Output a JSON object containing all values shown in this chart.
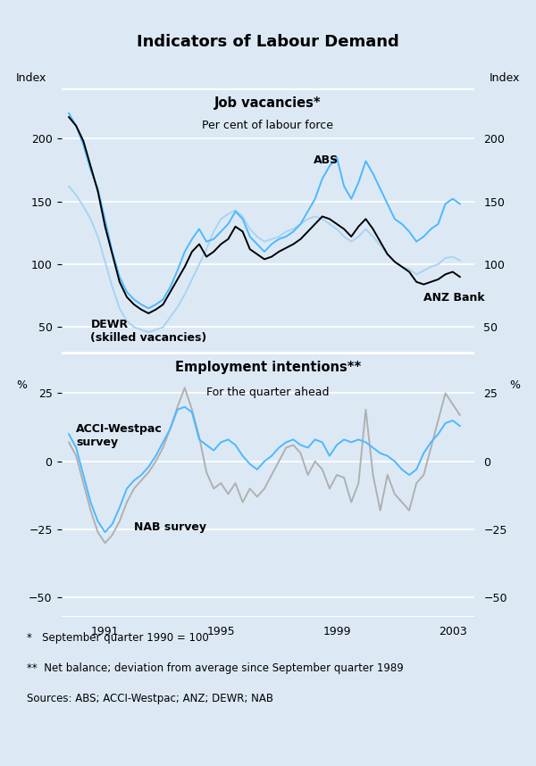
{
  "title": "Indicators of Labour Demand",
  "bg_color": "#dce9f5",
  "panel1_title": "Job vacancies*",
  "panel1_subtitle": "Per cent of labour force",
  "panel2_title": "Employment intentions**",
  "panel2_subtitle": "For the quarter ahead",
  "footnote1": "*   September quarter 1990 = 100",
  "footnote2": "**  Net balance; deviation from average since September quarter 1989",
  "footnote3": "Sources: ABS; ACCI-Westpac; ANZ; DEWR; NAB",
  "panel1_ylabel_left": "Index",
  "panel1_ylabel_right": "Index",
  "panel2_ylabel_left": "%",
  "panel2_ylabel_right": "%",
  "panel1_ylim": [
    30,
    240
  ],
  "panel1_yticks": [
    50,
    100,
    150,
    200
  ],
  "panel2_ylim": [
    -57,
    40
  ],
  "panel2_yticks": [
    -50,
    -25,
    0,
    25
  ],
  "xmin": 1989.5,
  "xmax": 2003.75,
  "xticks": [
    1991,
    1995,
    1999,
    2003
  ],
  "color_abs": "#4db8ff",
  "color_anz": "#000000",
  "color_dewr": "#a8d4f0",
  "color_acci": "#4db8ff",
  "color_nab": "#b0b0b0",
  "label_abs": "ABS",
  "label_anz": "ANZ Bank",
  "label_dewr": "DEWR\n(skilled vacancies)",
  "label_acci": "ACCI-Westpac\nsurvey",
  "label_nab": "NAB survey",
  "abs_x": [
    1989.75,
    1990.0,
    1990.25,
    1990.5,
    1990.75,
    1991.0,
    1991.25,
    1991.5,
    1991.75,
    1992.0,
    1992.25,
    1992.5,
    1992.75,
    1993.0,
    1993.25,
    1993.5,
    1993.75,
    1994.0,
    1994.25,
    1994.5,
    1994.75,
    1995.0,
    1995.25,
    1995.5,
    1995.75,
    1996.0,
    1996.25,
    1996.5,
    1996.75,
    1997.0,
    1997.25,
    1997.5,
    1997.75,
    1998.0,
    1998.25,
    1998.5,
    1998.75,
    1999.0,
    1999.25,
    1999.5,
    1999.75,
    2000.0,
    2000.25,
    2000.5,
    2000.75,
    2001.0,
    2001.25,
    2001.5,
    2001.75,
    2002.0,
    2002.25,
    2002.5,
    2002.75,
    2003.0,
    2003.25
  ],
  "abs_y": [
    220,
    210,
    195,
    175,
    160,
    135,
    110,
    90,
    78,
    72,
    68,
    65,
    68,
    72,
    82,
    95,
    110,
    120,
    128,
    118,
    120,
    126,
    132,
    142,
    136,
    122,
    116,
    110,
    116,
    120,
    122,
    126,
    132,
    142,
    152,
    168,
    178,
    185,
    162,
    152,
    165,
    182,
    172,
    160,
    148,
    136,
    132,
    126,
    118,
    122,
    128,
    132,
    148,
    152,
    148
  ],
  "anz_x": [
    1989.75,
    1990.0,
    1990.25,
    1990.5,
    1990.75,
    1991.0,
    1991.25,
    1991.5,
    1991.75,
    1992.0,
    1992.25,
    1992.5,
    1992.75,
    1993.0,
    1993.25,
    1993.5,
    1993.75,
    1994.0,
    1994.25,
    1994.5,
    1994.75,
    1995.0,
    1995.25,
    1995.5,
    1995.75,
    1996.0,
    1996.25,
    1996.5,
    1996.75,
    1997.0,
    1997.25,
    1997.5,
    1997.75,
    1998.0,
    1998.25,
    1998.5,
    1998.75,
    1999.0,
    1999.25,
    1999.5,
    1999.75,
    2000.0,
    2000.25,
    2000.5,
    2000.75,
    2001.0,
    2001.25,
    2001.5,
    2001.75,
    2002.0,
    2002.25,
    2002.5,
    2002.75,
    2003.0,
    2003.25
  ],
  "anz_y": [
    217,
    210,
    198,
    178,
    158,
    130,
    108,
    86,
    74,
    68,
    64,
    61,
    64,
    68,
    78,
    88,
    98,
    110,
    116,
    106,
    110,
    116,
    120,
    130,
    126,
    112,
    108,
    104,
    106,
    110,
    113,
    116,
    120,
    126,
    132,
    138,
    136,
    132,
    128,
    122,
    130,
    136,
    128,
    118,
    108,
    102,
    98,
    94,
    86,
    84,
    86,
    88,
    92,
    94,
    90
  ],
  "dewr_x": [
    1989.75,
    1990.0,
    1990.25,
    1990.5,
    1990.75,
    1991.0,
    1991.25,
    1991.5,
    1991.75,
    1992.0,
    1992.25,
    1992.5,
    1992.75,
    1993.0,
    1993.25,
    1993.5,
    1993.75,
    1994.0,
    1994.25,
    1994.5,
    1994.75,
    1995.0,
    1995.25,
    1995.5,
    1995.75,
    1996.0,
    1996.25,
    1996.5,
    1996.75,
    1997.0,
    1997.25,
    1997.5,
    1997.75,
    1998.0,
    1998.25,
    1998.5,
    1998.75,
    1999.0,
    1999.25,
    1999.5,
    1999.75,
    2000.0,
    2000.25,
    2000.5,
    2000.75,
    2001.0,
    2001.25,
    2001.5,
    2001.75,
    2002.0,
    2002.25,
    2002.5,
    2002.75,
    2003.0,
    2003.25
  ],
  "dewr_y": [
    162,
    155,
    146,
    136,
    122,
    102,
    82,
    65,
    55,
    50,
    48,
    46,
    48,
    50,
    58,
    66,
    76,
    88,
    100,
    112,
    126,
    136,
    140,
    143,
    138,
    128,
    122,
    118,
    120,
    122,
    126,
    128,
    132,
    136,
    138,
    136,
    132,
    128,
    122,
    118,
    122,
    128,
    122,
    115,
    108,
    102,
    98,
    96,
    92,
    95,
    98,
    100,
    105,
    106,
    103
  ],
  "acci_x": [
    1989.75,
    1990.0,
    1990.25,
    1990.5,
    1990.75,
    1991.0,
    1991.25,
    1991.5,
    1991.75,
    1992.0,
    1992.25,
    1992.5,
    1992.75,
    1993.0,
    1993.25,
    1993.5,
    1993.75,
    1994.0,
    1994.25,
    1994.5,
    1994.75,
    1995.0,
    1995.25,
    1995.5,
    1995.75,
    1996.0,
    1996.25,
    1996.5,
    1996.75,
    1997.0,
    1997.25,
    1997.5,
    1997.75,
    1998.0,
    1998.25,
    1998.5,
    1998.75,
    1999.0,
    1999.25,
    1999.5,
    1999.75,
    2000.0,
    2000.25,
    2000.5,
    2000.75,
    2001.0,
    2001.25,
    2001.5,
    2001.75,
    2002.0,
    2002.25,
    2002.5,
    2002.75,
    2003.0,
    2003.25
  ],
  "acci_y": [
    10,
    5,
    -5,
    -15,
    -22,
    -26,
    -23,
    -17,
    -10,
    -7,
    -5,
    -2,
    2,
    7,
    12,
    19,
    20,
    18,
    8,
    6,
    4,
    7,
    8,
    6,
    2,
    -1,
    -3,
    0,
    2,
    5,
    7,
    8,
    6,
    5,
    8,
    7,
    2,
    6,
    8,
    7,
    8,
    7,
    5,
    3,
    2,
    0,
    -3,
    -5,
    -3,
    3,
    7,
    10,
    14,
    15,
    13
  ],
  "nab_x": [
    1989.75,
    1990.0,
    1990.25,
    1990.5,
    1990.75,
    1991.0,
    1991.25,
    1991.5,
    1991.75,
    1992.0,
    1992.25,
    1992.5,
    1992.75,
    1993.0,
    1993.25,
    1993.5,
    1993.75,
    1994.0,
    1994.25,
    1994.5,
    1994.75,
    1995.0,
    1995.25,
    1995.5,
    1995.75,
    1996.0,
    1996.25,
    1996.5,
    1996.75,
    1997.0,
    1997.25,
    1997.5,
    1997.75,
    1998.0,
    1998.25,
    1998.5,
    1998.75,
    1999.0,
    1999.25,
    1999.5,
    1999.75,
    2000.0,
    2000.25,
    2000.5,
    2000.75,
    2001.0,
    2001.25,
    2001.5,
    2001.75,
    2002.0,
    2002.25,
    2002.5,
    2002.75,
    2003.0,
    2003.25
  ],
  "nab_y": [
    7,
    2,
    -8,
    -18,
    -26,
    -30,
    -27,
    -22,
    -15,
    -10,
    -7,
    -4,
    0,
    5,
    12,
    20,
    27,
    19,
    9,
    -4,
    -10,
    -8,
    -12,
    -8,
    -15,
    -10,
    -13,
    -10,
    -5,
    0,
    5,
    6,
    3,
    -5,
    0,
    -3,
    -10,
    -5,
    -6,
    -15,
    -8,
    19,
    -5,
    -18,
    -5,
    -12,
    -15,
    -18,
    -8,
    -5,
    5,
    15,
    25,
    21,
    17
  ]
}
